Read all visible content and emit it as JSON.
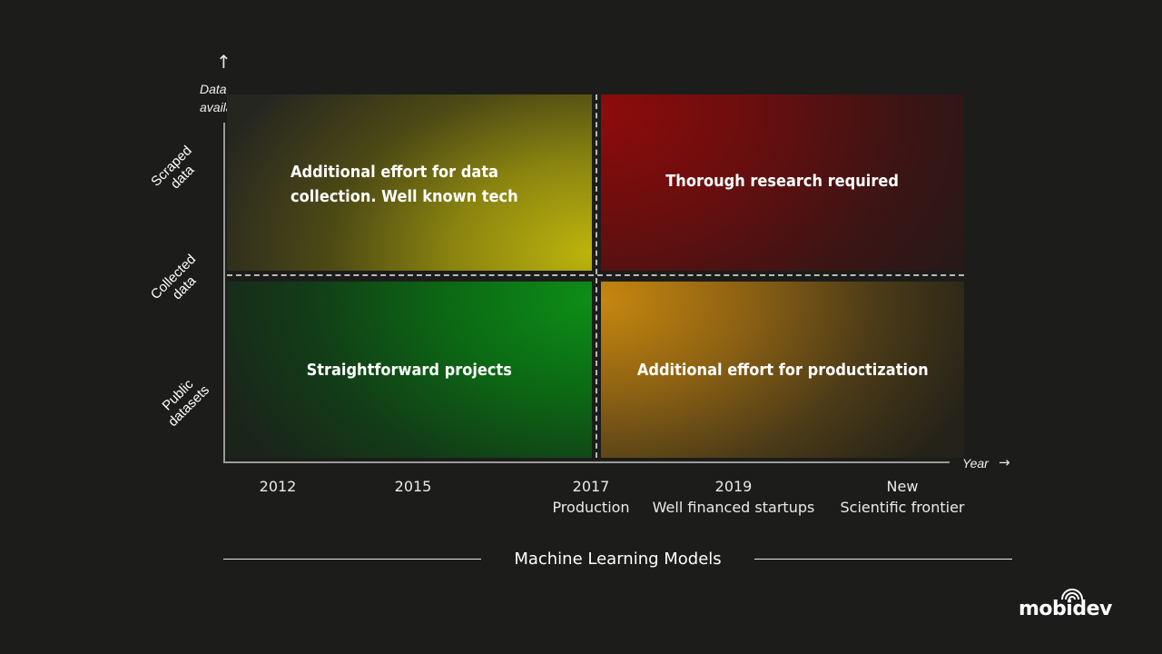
{
  "y_axis": {
    "title_line1": "Data",
    "title_line2": "availability",
    "ticks": [
      {
        "line1": "Scraped",
        "line2": "data"
      },
      {
        "line1": "Collected",
        "line2": "data"
      },
      {
        "line1": "Public",
        "line2": "datasets"
      }
    ]
  },
  "x_axis": {
    "title": "Year",
    "ticks": [
      {
        "line1": "2012",
        "line2": ""
      },
      {
        "line1": "2015",
        "line2": ""
      },
      {
        "line1": "2017",
        "line2": "Production"
      },
      {
        "line1": "2019",
        "line2": "Well financed startups"
      },
      {
        "line1": "New",
        "line2": "Scientific frontier"
      }
    ]
  },
  "quadrants": {
    "top_left": {
      "line1": "Additional effort for data",
      "line2": "collection. Well known tech",
      "color": "#bdb40c"
    },
    "top_right": {
      "text": "Thorough research required",
      "color": "#8e0b0b"
    },
    "bottom_left": {
      "text": "Straightforward projects",
      "color": "#0d8e17"
    },
    "bottom_right": {
      "text": "Additional effort for productization",
      "color": "#c7870f"
    }
  },
  "caption": "Machine Learning Models",
  "logo": {
    "text": "mobidev",
    "icon": "wifi-signal-icon"
  }
}
